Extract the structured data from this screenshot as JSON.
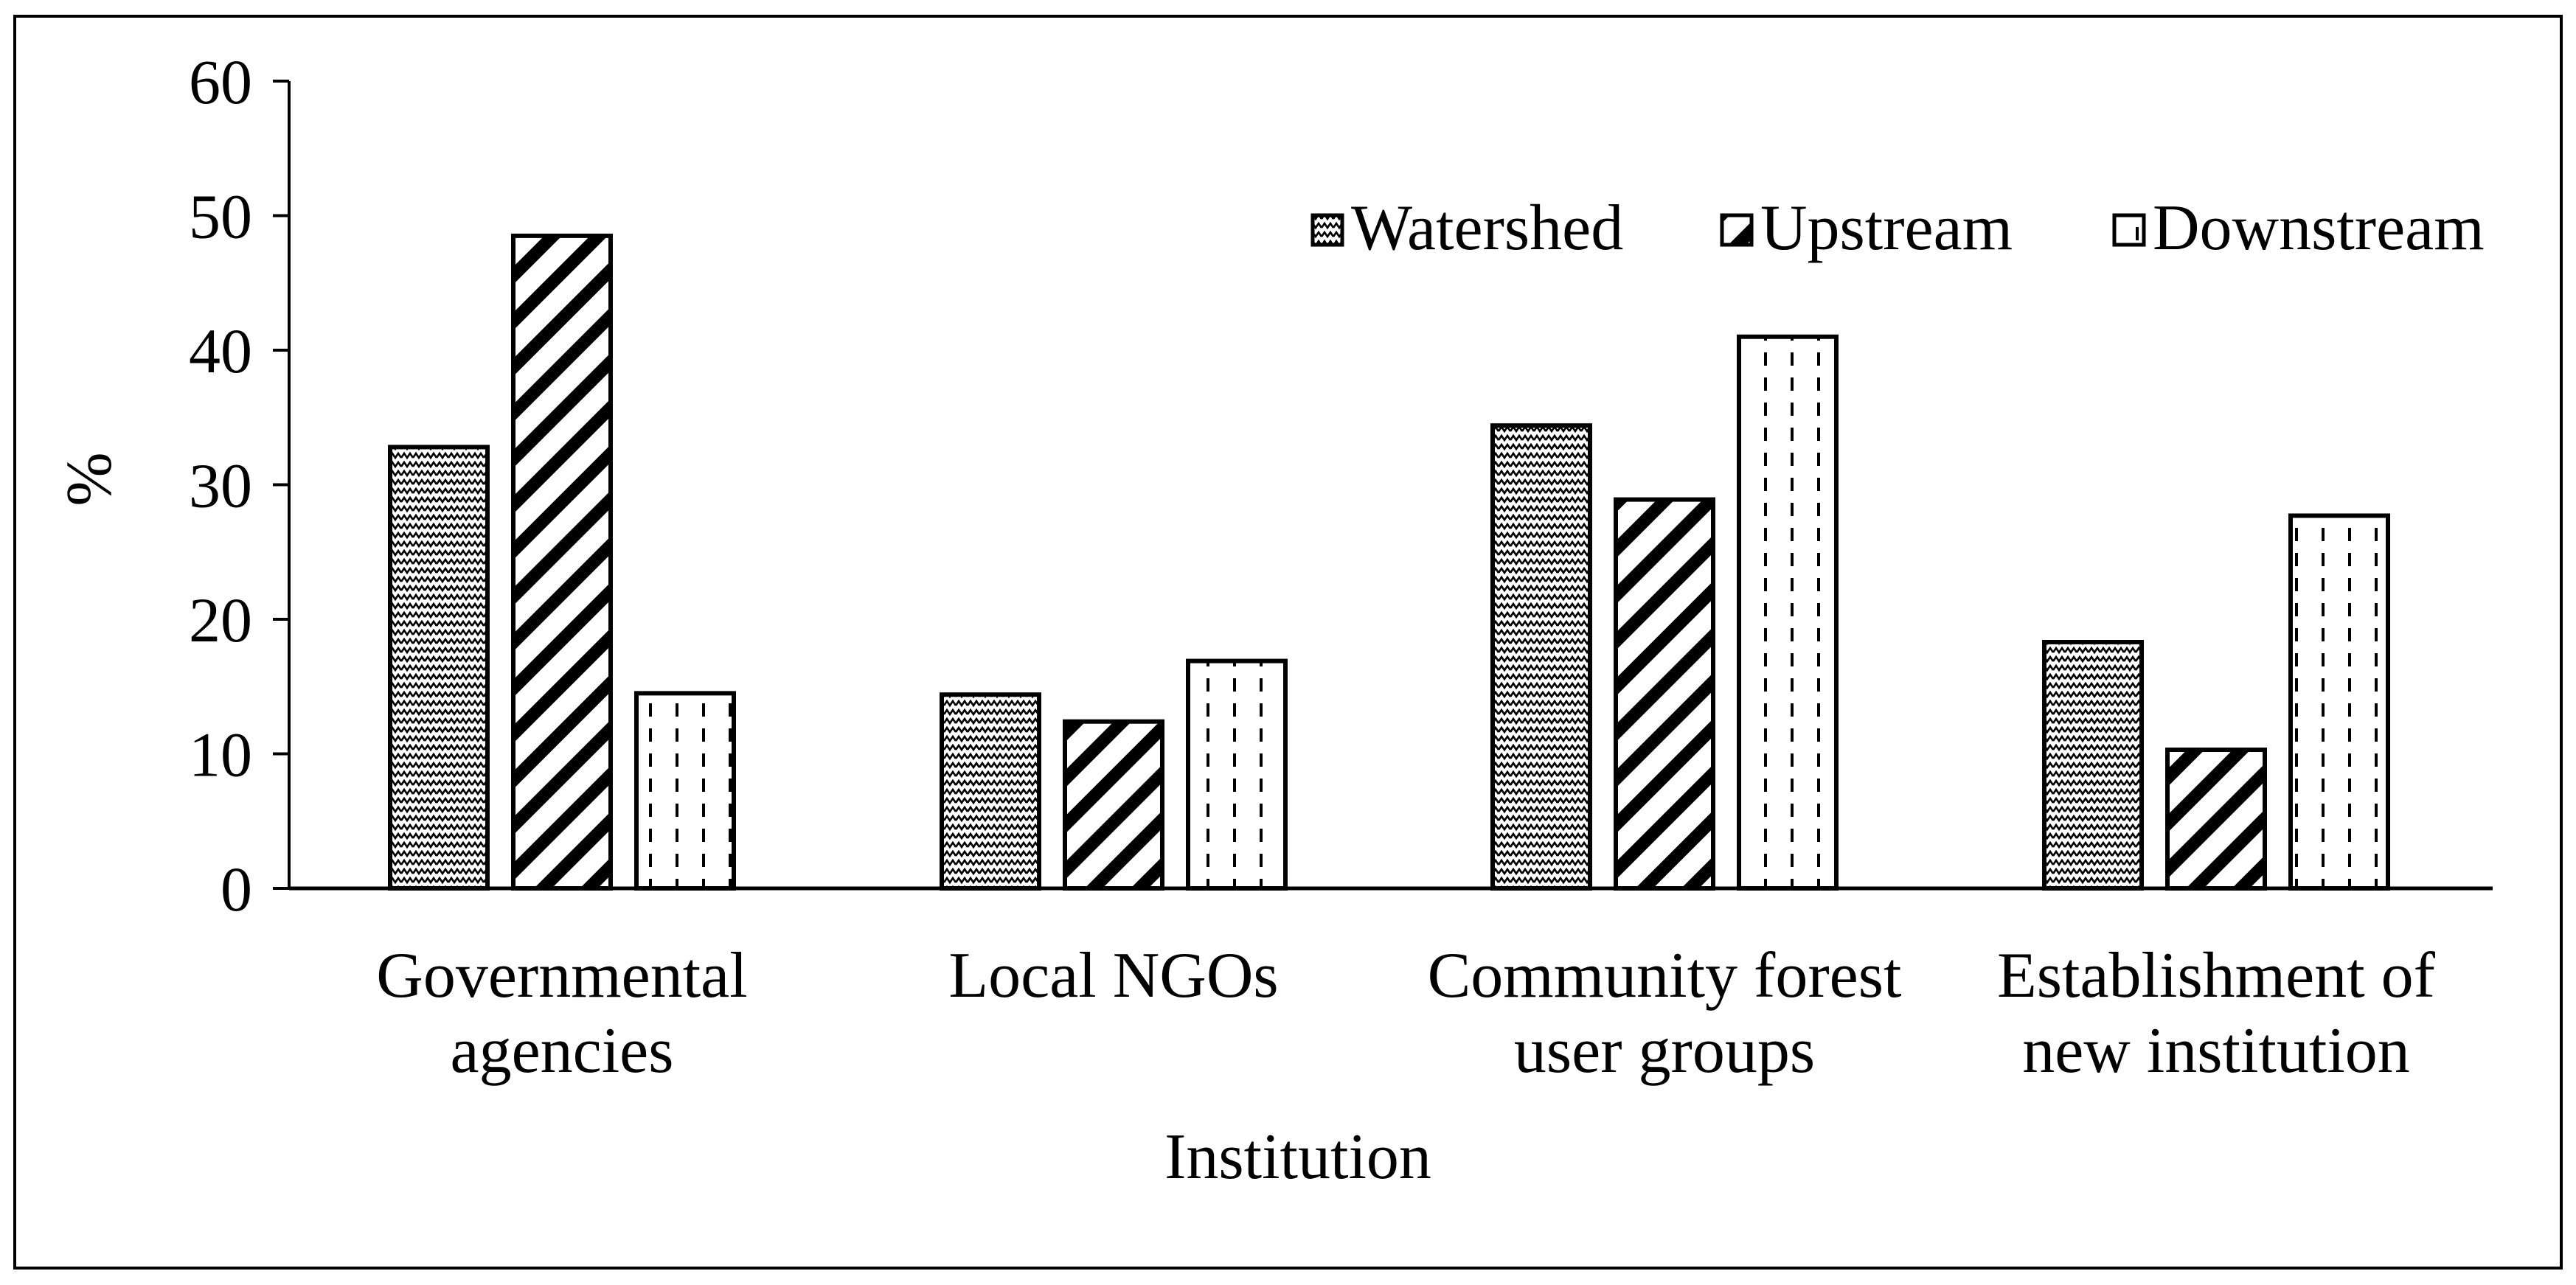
{
  "chart_data": {
    "type": "bar",
    "title": "",
    "xlabel": "Institution",
    "ylabel": "%",
    "ylim": [
      0,
      60
    ],
    "yticks": [
      0,
      10,
      20,
      30,
      40,
      50,
      60
    ],
    "grid": false,
    "legend_position": "top-right",
    "categories": [
      [
        "Governmental",
        "agencies"
      ],
      [
        "Local NGOs"
      ],
      [
        "Community forest",
        "user groups"
      ],
      [
        "Establishment of",
        "new institution"
      ]
    ],
    "series": [
      {
        "name": "Watershed",
        "pattern": "zigzag",
        "values": [
          32.8,
          14.4,
          34.4,
          18.3
        ]
      },
      {
        "name": "Upstream",
        "pattern": "diagonal",
        "values": [
          48.5,
          12.4,
          28.9,
          10.3
        ]
      },
      {
        "name": "Downstream",
        "pattern": "dashed",
        "values": [
          14.5,
          16.9,
          41.0,
          27.7
        ]
      }
    ],
    "colors": {
      "ink": "#000000",
      "background": "#ffffff"
    }
  }
}
